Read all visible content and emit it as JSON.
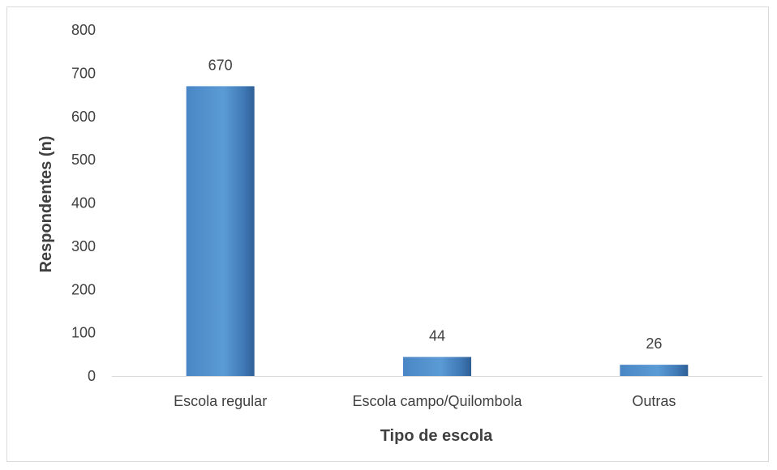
{
  "chart_data": {
    "type": "bar",
    "categories": [
      "Escola regular",
      "Escola campo/Quilombola",
      "Outras"
    ],
    "values": [
      670,
      44,
      26
    ],
    "data_labels": [
      "670",
      "44",
      "26"
    ],
    "title": "",
    "xlabel": "Tipo de escola",
    "ylabel": "Respondentes (n)",
    "ylim": [
      0,
      800
    ],
    "yticks": [
      0,
      100,
      200,
      300,
      400,
      500,
      600,
      700,
      800
    ],
    "ytick_labels": [
      "0",
      "100",
      "200",
      "300",
      "400",
      "500",
      "600",
      "700",
      "800"
    ],
    "grid": false,
    "legend": "none",
    "colors": {
      "bar_light": "#5b9bd5",
      "bar_dark": "#2e5f95",
      "axis": "#d9d9d9",
      "text": "#404040"
    }
  }
}
